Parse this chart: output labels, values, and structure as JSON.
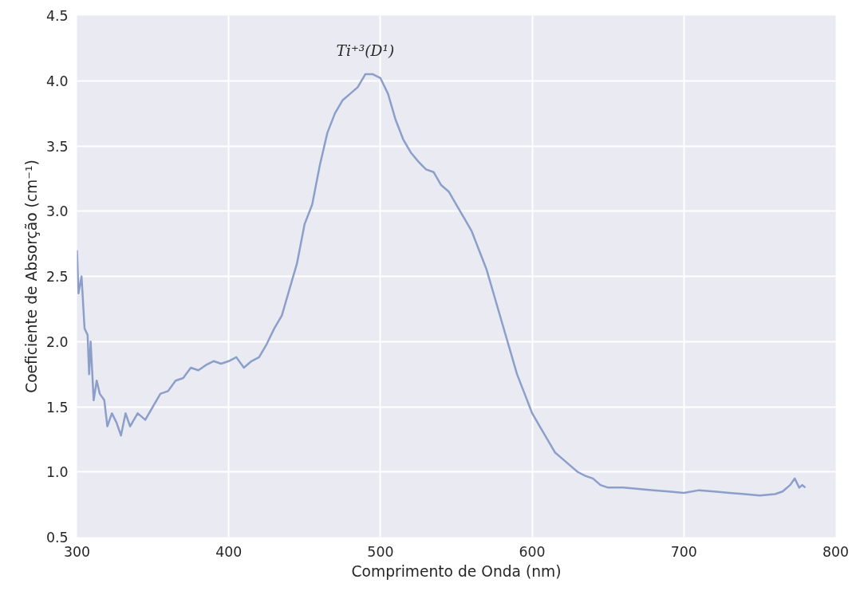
{
  "chart_data": {
    "type": "line",
    "xlabel": "Comprimento de Onda (nm)",
    "ylabel": "Coeficiente de Absorção (cm⁻¹)",
    "annotations": [
      "Ti⁺³(D¹)"
    ],
    "x": [
      300,
      301,
      303,
      305,
      307,
      308,
      309,
      311,
      313,
      315,
      318,
      320,
      323,
      326,
      329,
      332,
      335,
      340,
      345,
      350,
      355,
      360,
      365,
      370,
      375,
      380,
      385,
      390,
      395,
      400,
      405,
      410,
      415,
      420,
      425,
      430,
      435,
      440,
      445,
      450,
      455,
      460,
      465,
      470,
      475,
      480,
      485,
      490,
      495,
      500,
      505,
      510,
      515,
      520,
      525,
      530,
      535,
      540,
      545,
      550,
      555,
      560,
      565,
      570,
      575,
      580,
      585,
      590,
      595,
      600,
      605,
      610,
      615,
      620,
      625,
      630,
      635,
      640,
      645,
      650,
      660,
      670,
      680,
      690,
      700,
      710,
      720,
      730,
      740,
      750,
      760,
      765,
      770,
      773,
      776,
      778,
      780
    ],
    "series": [
      {
        "color": "#8c9fca",
        "values": [
          2.7,
          2.37,
          2.5,
          2.1,
          2.05,
          1.75,
          2.0,
          1.55,
          1.7,
          1.6,
          1.55,
          1.35,
          1.45,
          1.38,
          1.28,
          1.45,
          1.35,
          1.45,
          1.4,
          1.5,
          1.6,
          1.62,
          1.7,
          1.72,
          1.8,
          1.78,
          1.82,
          1.85,
          1.83,
          1.85,
          1.88,
          1.8,
          1.85,
          1.88,
          1.98,
          2.1,
          2.2,
          2.4,
          2.6,
          2.9,
          3.05,
          3.35,
          3.6,
          3.75,
          3.85,
          3.9,
          3.95,
          4.05,
          4.05,
          4.02,
          3.9,
          3.7,
          3.55,
          3.45,
          3.38,
          3.32,
          3.3,
          3.2,
          3.15,
          3.05,
          2.95,
          2.85,
          2.7,
          2.55,
          2.35,
          2.15,
          1.95,
          1.75,
          1.6,
          1.45,
          1.35,
          1.25,
          1.15,
          1.1,
          1.05,
          1.0,
          0.97,
          0.95,
          0.9,
          0.88,
          0.88,
          0.87,
          0.86,
          0.85,
          0.84,
          0.86,
          0.85,
          0.84,
          0.83,
          0.82,
          0.83,
          0.85,
          0.9,
          0.95,
          0.88,
          0.9,
          0.88
        ]
      }
    ],
    "xlim": [
      300,
      800
    ],
    "xticks": [
      300,
      400,
      500,
      600,
      700,
      800
    ],
    "ylim": [
      0.5,
      4.5
    ],
    "yticks": [
      0.5,
      {
        "value": 1,
        "label": "1.0"
      },
      1.5,
      {
        "value": 2,
        "label": "2.0"
      },
      2.5,
      {
        "value": 3,
        "label": "3.0"
      },
      3.5,
      {
        "value": 4,
        "label": "4.0"
      },
      4.5
    ],
    "grid": true,
    "line_style": "solid",
    "marker": "none"
  }
}
